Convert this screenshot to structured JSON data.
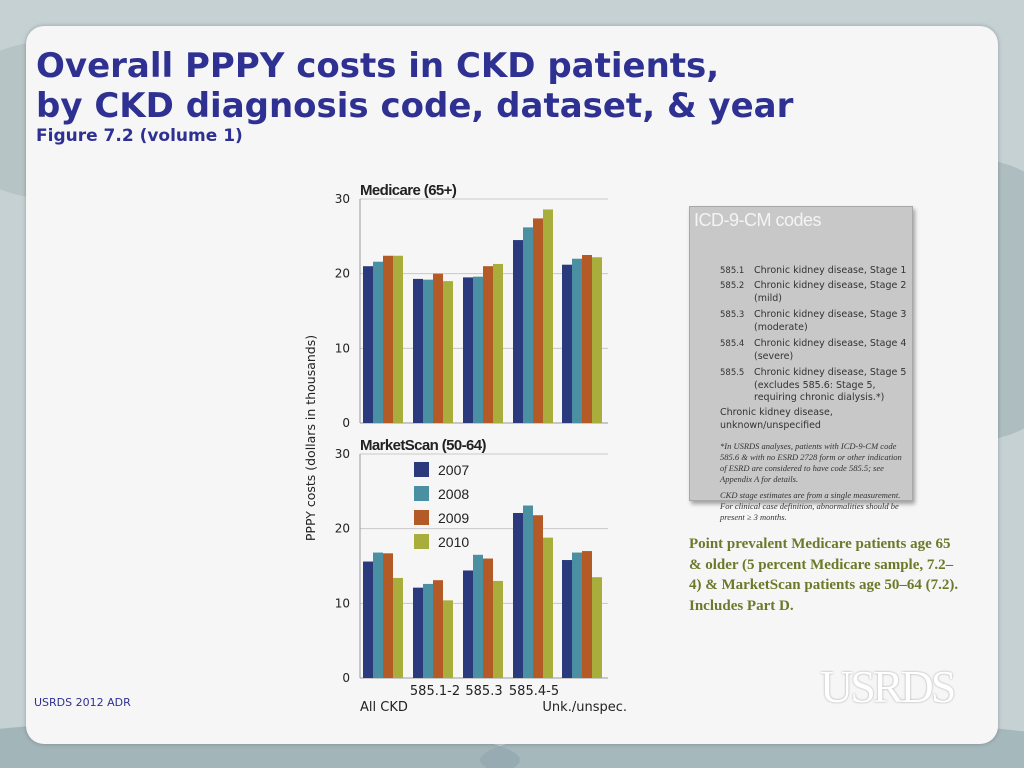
{
  "slide": {
    "title_line1": "Overall PPPY costs in CKD patients,",
    "title_line2": "by CKD diagnosis code, dataset, & year",
    "subtitle": "Figure 7.2 (volume 1)",
    "footer": "USRDS 2012 ADR",
    "logo_text": "USRDS",
    "description": "Point prevalent Medicare patients age 65 & older (5 percent Medicare sample, 7.2–4) & MarketScan patients age 50–64 (7.2). Includes Part D."
  },
  "icd": {
    "title": "ICD-9-CM codes",
    "codes": [
      {
        "code": "585.1",
        "desc": "Chronic kidney disease, Stage 1"
      },
      {
        "code": "585.2",
        "desc": "Chronic kidney disease, Stage 2 (mild)"
      },
      {
        "code": "585.3",
        "desc": "Chronic kidney disease, Stage 3 (moderate)"
      },
      {
        "code": "585.4",
        "desc": "Chronic kidney disease, Stage 4 (severe)"
      },
      {
        "code": "585.5",
        "desc": "Chronic kidney disease, Stage 5 (excludes 585.6: Stage 5, requiring chronic dialysis.*)"
      }
    ],
    "unknown": "Chronic kidney disease, unknown/unspecified",
    "note1": "*In USRDS analyses, patients with ICD-9-CM code 585.6 & with no ESRD 2728 form or other indication of ESRD are considered to have code 585.5; see Appendix A for details.",
    "note2": "CKD stage estimates are from a single measurement. For clinical case definition, abnormalities should be present ≥ 3 months."
  },
  "colors": {
    "2007": "#2b3a7c",
    "2008": "#4a8fa2",
    "2009": "#b35a27",
    "2010": "#a9ad3c",
    "title": "#2e3192"
  },
  "chart_data": [
    {
      "type": "bar",
      "title": "Medicare (65+)",
      "ylabel": "PPPY costs (dollars in thousands)",
      "ylim": [
        0,
        30
      ],
      "yticks": [
        0,
        10,
        20,
        30
      ],
      "categories": [
        "All CKD",
        "585.1-2",
        "585.3",
        "585.4-5",
        "Unk./unspec."
      ],
      "series": [
        {
          "name": "2007",
          "values": [
            21.0,
            19.3,
            19.5,
            24.5,
            21.2
          ]
        },
        {
          "name": "2008",
          "values": [
            21.6,
            19.2,
            19.6,
            26.2,
            22.0
          ]
        },
        {
          "name": "2009",
          "values": [
            22.4,
            20.0,
            21.0,
            27.4,
            22.5
          ]
        },
        {
          "name": "2010",
          "values": [
            22.4,
            19.0,
            21.3,
            28.6,
            22.2
          ]
        }
      ]
    },
    {
      "type": "bar",
      "title": "MarketScan (50-64)",
      "ylim": [
        0,
        30
      ],
      "yticks": [
        0,
        10,
        20,
        30
      ],
      "categories": [
        "All CKD",
        "585.1-2",
        "585.3",
        "585.4-5",
        "Unk./unspec."
      ],
      "legend": [
        "2007",
        "2008",
        "2009",
        "2010"
      ],
      "series": [
        {
          "name": "2007",
          "values": [
            15.6,
            12.1,
            14.4,
            22.1,
            15.8
          ]
        },
        {
          "name": "2008",
          "values": [
            16.8,
            12.6,
            16.5,
            23.1,
            16.8
          ]
        },
        {
          "name": "2009",
          "values": [
            16.7,
            13.1,
            16.0,
            21.8,
            17.0
          ]
        },
        {
          "name": "2010",
          "values": [
            13.4,
            10.4,
            13.0,
            18.8,
            13.5
          ]
        }
      ]
    }
  ]
}
